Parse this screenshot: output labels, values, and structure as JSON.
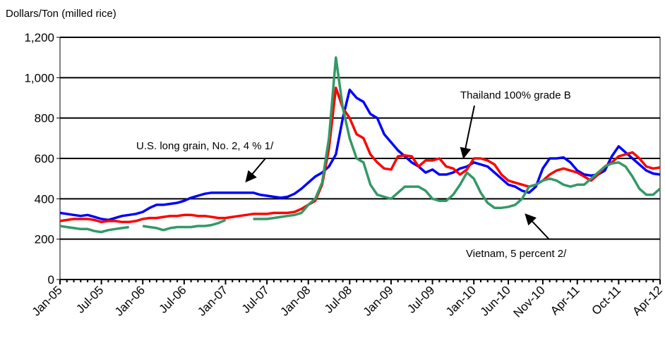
{
  "chart_data": {
    "type": "line",
    "y_label": "Dollars/Ton (milled rice)",
    "categories": [
      "Jan-05",
      null,
      null,
      null,
      null,
      null,
      "Jul-05",
      null,
      null,
      null,
      null,
      null,
      "Jan-06",
      null,
      null,
      null,
      null,
      null,
      "Jul-06",
      null,
      null,
      null,
      null,
      null,
      "Jan-07",
      null,
      null,
      null,
      null,
      null,
      "Jul-07",
      null,
      null,
      null,
      null,
      null,
      "Jan-08",
      null,
      null,
      null,
      null,
      null,
      "Jul-08",
      null,
      null,
      null,
      null,
      null,
      "Jan-09",
      null,
      null,
      null,
      null,
      null,
      "Jul-09",
      null,
      null,
      null,
      null,
      null,
      "Jan-10",
      null,
      null,
      null,
      null,
      "Jun-10",
      null,
      null,
      null,
      null,
      "Nov-10",
      null,
      null,
      null,
      null,
      "Apr-11",
      null,
      null,
      null,
      null,
      null,
      "Oct-11",
      null,
      null,
      null,
      null,
      null,
      "Apr-12"
    ],
    "series": [
      {
        "name": "U.S. long grain, No. 2, 4 % 1/",
        "color": "#0000ff",
        "values": [
          330,
          325,
          320,
          315,
          320,
          310,
          300,
          295,
          305,
          315,
          320,
          325,
          335,
          355,
          370,
          370,
          375,
          380,
          390,
          405,
          415,
          425,
          430,
          430,
          430,
          430,
          430,
          430,
          430,
          420,
          415,
          410,
          405,
          410,
          425,
          450,
          480,
          510,
          530,
          560,
          620,
          800,
          940,
          900,
          880,
          820,
          800,
          720,
          680,
          640,
          610,
          580,
          560,
          530,
          545,
          520,
          520,
          530,
          550,
          560,
          580,
          570,
          560,
          530,
          500,
          470,
          460,
          440,
          430,
          460,
          550,
          600,
          600,
          605,
          580,
          540,
          520,
          515,
          520,
          540,
          610,
          660,
          630,
          600,
          570,
          540,
          525,
          520
        ]
      },
      {
        "name": "Thailand 100% grade B",
        "color": "#ff0000",
        "values": [
          290,
          295,
          300,
          300,
          300,
          295,
          285,
          290,
          290,
          285,
          285,
          290,
          300,
          305,
          305,
          310,
          315,
          315,
          320,
          320,
          315,
          315,
          310,
          305,
          305,
          310,
          315,
          320,
          325,
          325,
          325,
          330,
          330,
          330,
          335,
          350,
          370,
          390,
          470,
          650,
          950,
          850,
          800,
          720,
          700,
          620,
          580,
          550,
          545,
          610,
          615,
          610,
          560,
          590,
          590,
          600,
          560,
          550,
          520,
          545,
          600,
          600,
          590,
          570,
          520,
          490,
          480,
          470,
          460,
          470,
          490,
          520,
          540,
          550,
          540,
          530,
          510,
          490,
          520,
          560,
          580,
          610,
          620,
          630,
          600,
          560,
          550,
          555
        ]
      },
      {
        "name": "Vietnam, 5 percent 2/",
        "color": "#339966",
        "values": [
          265,
          260,
          255,
          250,
          250,
          240,
          235,
          245,
          250,
          255,
          260,
          null,
          265,
          260,
          255,
          245,
          255,
          260,
          260,
          260,
          265,
          265,
          270,
          280,
          295,
          null,
          null,
          null,
          300,
          300,
          300,
          305,
          310,
          315,
          320,
          330,
          370,
          400,
          480,
          700,
          1100,
          850,
          700,
          600,
          580,
          470,
          420,
          410,
          400,
          430,
          460,
          460,
          460,
          440,
          400,
          390,
          390,
          420,
          470,
          530,
          500,
          430,
          380,
          355,
          355,
          360,
          370,
          400,
          460,
          470,
          490,
          500,
          490,
          470,
          460,
          470,
          470,
          500,
          530,
          560,
          575,
          580,
          560,
          510,
          450,
          420,
          420,
          450
        ]
      }
    ],
    "ylim": [
      0,
      1200
    ],
    "yticks": [
      0,
      200,
      400,
      600,
      800,
      {
        "value": 1000,
        "label": "1,000"
      },
      {
        "value": 1200,
        "label": "1,200"
      }
    ],
    "grid": true
  }
}
